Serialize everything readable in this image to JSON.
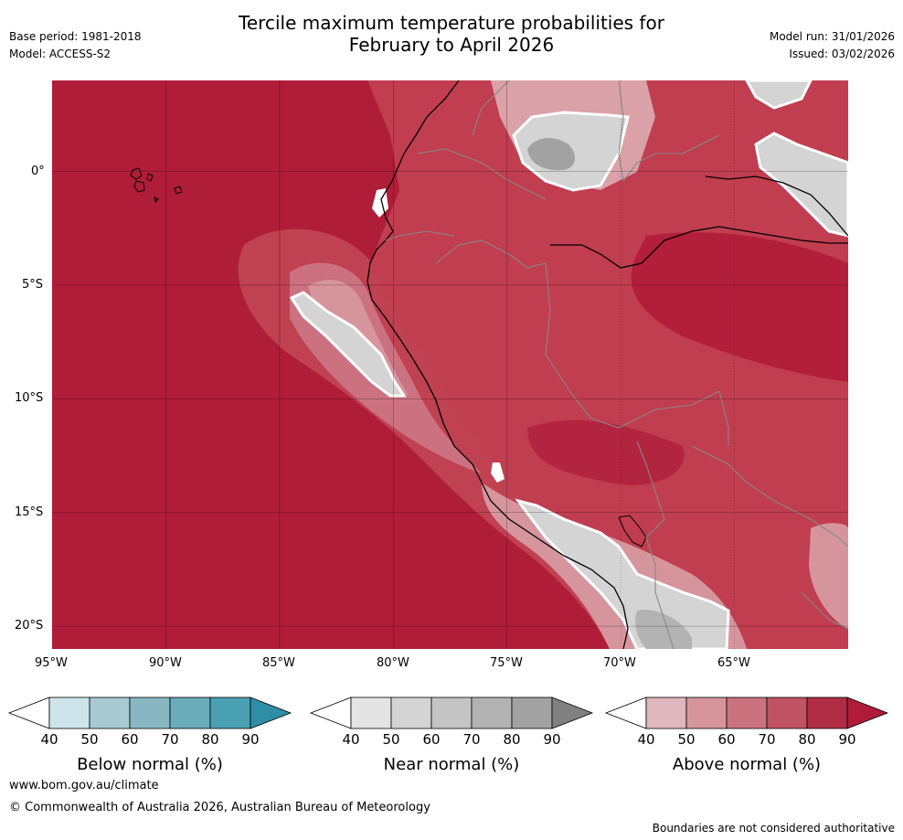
{
  "header": {
    "title_line1": "Tercile maximum temperature probabilities for",
    "title_line2": "February to April 2026",
    "base_period": "Base period: 1981-2018",
    "model": "Model: ACCESS-S2",
    "model_run": "Model run: 31/01/2026",
    "issued": "Issued: 03/02/2026"
  },
  "map": {
    "lat_labels": [
      "0°",
      "5°S",
      "10°S",
      "15°S",
      "20°S"
    ],
    "lon_labels": [
      "95°W",
      "90°W",
      "85°W",
      "80°W",
      "75°W",
      "70°W",
      "65°W"
    ],
    "extent": {
      "lon_min": -95,
      "lon_max": -60,
      "lat_min": -21,
      "lat_max": 4
    }
  },
  "colorbars": [
    {
      "title": "Below normal (%)",
      "ticks": [
        "40",
        "50",
        "60",
        "70",
        "80",
        "90"
      ],
      "colors": [
        "#ffffff",
        "#cde4ea",
        "#a7c9d1",
        "#88b7c3",
        "#6aacb9",
        "#48a0b2",
        "#2d8ea6"
      ]
    },
    {
      "title": "Near normal (%)",
      "ticks": [
        "40",
        "50",
        "60",
        "70",
        "80",
        "90"
      ],
      "colors": [
        "#ffffff",
        "#e4e4e4",
        "#d4d4d4",
        "#c4c4c4",
        "#b3b3b3",
        "#a2a2a2",
        "#808080"
      ]
    },
    {
      "title": "Above normal (%)",
      "ticks": [
        "40",
        "50",
        "60",
        "70",
        "80",
        "90"
      ],
      "colors": [
        "#ffffff",
        "#e0b7bd",
        "#d6959d",
        "#cb727f",
        "#bf5363",
        "#b02d45",
        "#b01c38"
      ]
    }
  ],
  "footer": {
    "website": "www.bom.gov.au/climate",
    "copyright": "© Commonwealth of Australia 2026, Australian Bureau of Meteorology",
    "disclaimer": "Boundaries are not considered authoritative"
  }
}
